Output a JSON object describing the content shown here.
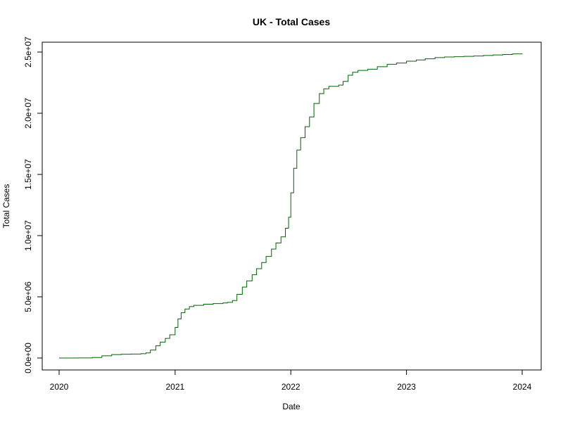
{
  "chart_data": {
    "type": "line",
    "title": "UK - Total Cases",
    "xlabel": "Date",
    "ylabel": "Total Cases",
    "xlim": [
      "2020-01-01",
      "2024-01-01"
    ],
    "ylim": [
      0,
      25000000
    ],
    "grid": false,
    "legend": "none",
    "line_style": "step",
    "series_color": "#006400",
    "x_ticks": [
      {
        "date": "2020-01-01",
        "label": "2020"
      },
      {
        "date": "2021-01-01",
        "label": "2021"
      },
      {
        "date": "2022-01-01",
        "label": "2022"
      },
      {
        "date": "2023-01-01",
        "label": "2023"
      },
      {
        "date": "2024-01-01",
        "label": "2024"
      }
    ],
    "y_ticks": [
      {
        "value": 0,
        "label": "0.0e+00"
      },
      {
        "value": 5000000,
        "label": "5.0e+06"
      },
      {
        "value": 10000000,
        "label": "1.0e+07"
      },
      {
        "value": 15000000,
        "label": "1.5e+07"
      },
      {
        "value": 20000000,
        "label": "2.0e+07"
      },
      {
        "value": 25000000,
        "label": "2.5e+07"
      }
    ],
    "series": [
      {
        "x": [
          "2020-01-01",
          "2020-03-01",
          "2020-04-15",
          "2020-05-15",
          "2020-06-15",
          "2020-07-15",
          "2020-08-15",
          "2020-09-15",
          "2020-10-01",
          "2020-10-15",
          "2020-11-01",
          "2020-11-15",
          "2020-12-01",
          "2020-12-15",
          "2021-01-01",
          "2021-01-10",
          "2021-01-20",
          "2021-02-01",
          "2021-02-15",
          "2021-03-01",
          "2021-04-01",
          "2021-05-01",
          "2021-06-01",
          "2021-06-15",
          "2021-07-01",
          "2021-07-15",
          "2021-08-01",
          "2021-08-15",
          "2021-09-01",
          "2021-09-15",
          "2021-10-01",
          "2021-10-15",
          "2021-11-01",
          "2021-11-15",
          "2021-12-01",
          "2021-12-15",
          "2021-12-25",
          "2022-01-01",
          "2022-01-10",
          "2022-01-20",
          "2022-02-01",
          "2022-02-15",
          "2022-03-01",
          "2022-03-15",
          "2022-04-01",
          "2022-04-15",
          "2022-05-01",
          "2022-06-01",
          "2022-06-15",
          "2022-07-01",
          "2022-07-15",
          "2022-08-01",
          "2022-09-01",
          "2022-10-01",
          "2022-11-01",
          "2022-12-01",
          "2023-01-01",
          "2023-02-01",
          "2023-03-01",
          "2023-04-01",
          "2023-05-01",
          "2023-06-01",
          "2023-07-01",
          "2023-08-01",
          "2023-09-01",
          "2023-10-01",
          "2023-11-01",
          "2023-12-01",
          "2024-01-01"
        ],
        "y": [
          0,
          5000,
          40000,
          180000,
          280000,
          310000,
          320000,
          350000,
          420000,
          650000,
          1000000,
          1300000,
          1600000,
          1900000,
          2500000,
          3200000,
          3700000,
          4000000,
          4200000,
          4300000,
          4400000,
          4450000,
          4500000,
          4550000,
          4700000,
          5200000,
          5800000,
          6300000,
          6800000,
          7300000,
          7800000,
          8300000,
          8900000,
          9400000,
          9900000,
          10600000,
          11500000,
          13500000,
          15500000,
          17000000,
          18000000,
          18900000,
          19700000,
          20800000,
          21600000,
          22000000,
          22200000,
          22300000,
          22600000,
          23100000,
          23350000,
          23500000,
          23600000,
          23800000,
          24000000,
          24100000,
          24250000,
          24350000,
          24450000,
          24550000,
          24600000,
          24620000,
          24650000,
          24680000,
          24720000,
          24760000,
          24800000,
          24850000,
          24880000
        ]
      }
    ]
  }
}
